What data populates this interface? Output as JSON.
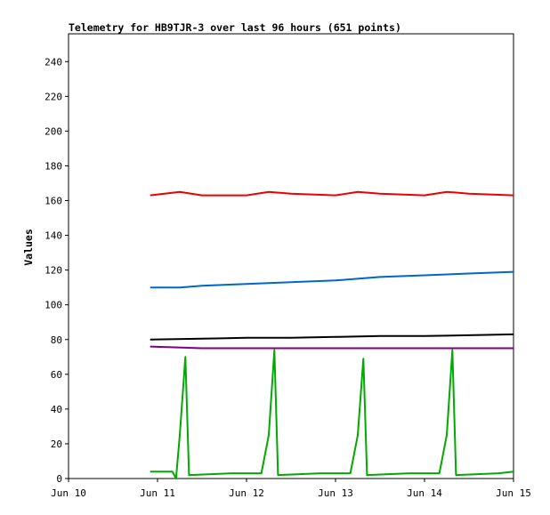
{
  "chart_data": {
    "type": "line",
    "title": "Telemetry for HB9TJR-3 over last 96 hours (651 points)",
    "xlabel": "",
    "ylabel": "Values",
    "x_axis": {
      "type": "date",
      "range": [
        "Jun 10",
        "Jun 15"
      ],
      "ticks": [
        "Jun 10",
        "Jun 11",
        "Jun 12",
        "Jun 13",
        "Jun 14",
        "Jun 15"
      ]
    },
    "ylim": [
      0,
      256
    ],
    "y_ticks": [
      0,
      20,
      40,
      60,
      80,
      100,
      120,
      140,
      160,
      180,
      200,
      220,
      240
    ],
    "grid": false,
    "legend": "none",
    "series": [
      {
        "color": "#ee0000",
        "x": [
          "Jun 10 22:00",
          "Jun 11 06:00",
          "Jun 11 12:00",
          "Jun 12 00:00",
          "Jun 12 06:00",
          "Jun 12 12:00",
          "Jun 13 00:00",
          "Jun 13 06:00",
          "Jun 13 12:00",
          "Jun 14 00:00",
          "Jun 14 06:00",
          "Jun 14 12:00",
          "Jun 15 00:00"
        ],
        "y": [
          163,
          165,
          163,
          163,
          165,
          164,
          163,
          165,
          164,
          163,
          165,
          164,
          163
        ]
      },
      {
        "color": "#0066cc",
        "x": [
          "Jun 10 22:00",
          "Jun 11 06:00",
          "Jun 11 12:00",
          "Jun 12 00:00",
          "Jun 12 12:00",
          "Jun 13 00:00",
          "Jun 13 12:00",
          "Jun 14 00:00",
          "Jun 14 12:00",
          "Jun 15 00:00"
        ],
        "y": [
          110,
          110,
          111,
          112,
          113,
          114,
          116,
          117,
          118,
          119
        ]
      },
      {
        "color": "#000000",
        "x": [
          "Jun 10 22:00",
          "Jun 11 12:00",
          "Jun 12 00:00",
          "Jun 12 12:00",
          "Jun 13 00:00",
          "Jun 13 12:00",
          "Jun 14 00:00",
          "Jun 14 12:00",
          "Jun 15 00:00"
        ],
        "y": [
          80,
          80.5,
          81,
          81,
          81.5,
          82,
          82,
          82.5,
          83
        ]
      },
      {
        "color": "#800080",
        "x": [
          "Jun 10 22:00",
          "Jun 11 12:00",
          "Jun 12 00:00",
          "Jun 12 12:00",
          "Jun 13 00:00",
          "Jun 13 12:00",
          "Jun 14 00:00",
          "Jun 14 12:00",
          "Jun 15 00:00"
        ],
        "y": [
          76,
          75,
          75,
          75,
          75,
          75,
          75,
          75,
          75
        ]
      },
      {
        "color": "#00aa00",
        "x": [
          "Jun 10 22:00",
          "Jun 11 04:00",
          "Jun 11 05:00",
          "Jun 11 06:00",
          "Jun 11 07:30",
          "Jun 11 08:30",
          "Jun 11 20:00",
          "Jun 12 04:00",
          "Jun 12 06:00",
          "Jun 12 07:30",
          "Jun 12 08:30",
          "Jun 12 20:00",
          "Jun 13 04:00",
          "Jun 13 06:00",
          "Jun 13 07:30",
          "Jun 13 08:30",
          "Jun 13 20:00",
          "Jun 14 04:00",
          "Jun 14 06:00",
          "Jun 14 07:30",
          "Jun 14 08:30",
          "Jun 14 20:00",
          "Jun 15 00:00"
        ],
        "y": [
          4,
          4,
          0,
          25,
          70,
          2,
          3,
          3,
          25,
          74,
          2,
          3,
          3,
          25,
          69,
          2,
          3,
          3,
          25,
          74,
          2,
          3,
          4
        ]
      }
    ]
  }
}
